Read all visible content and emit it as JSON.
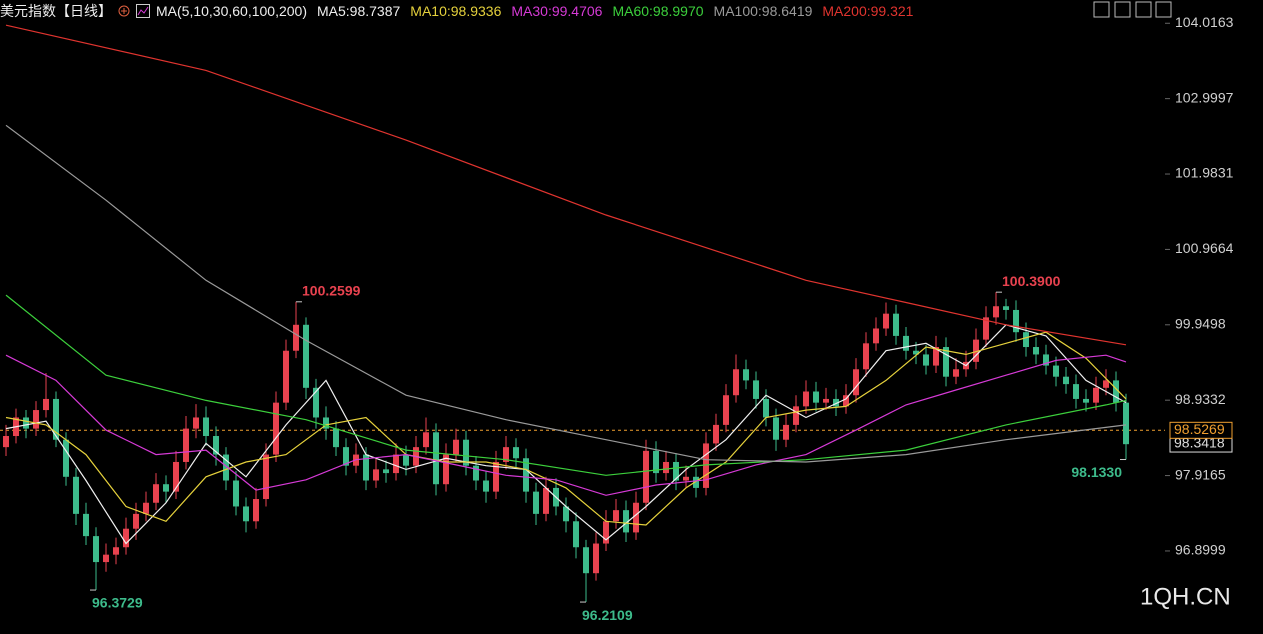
{
  "chart_data": {
    "type": "candlestick",
    "title": "美元指数【日线】",
    "indicator": "MA(5,10,30,60,100,200)",
    "watermark": "1QH.CN",
    "ylim": [
      95.78,
      104.33
    ],
    "yticks": [
      96.8999,
      97.9165,
      98.9332,
      99.9498,
      100.9664,
      101.9831,
      102.9997,
      104.0163
    ],
    "up_color": "#e8424f",
    "down_color": "#3dbb8b",
    "ohlc": [
      [
        98.3,
        98.6,
        98.18,
        98.45
      ],
      [
        98.45,
        98.82,
        98.35,
        98.7
      ],
      [
        98.7,
        98.8,
        98.42,
        98.55
      ],
      [
        98.55,
        98.92,
        98.45,
        98.8
      ],
      [
        98.8,
        99.3,
        98.7,
        98.95
      ],
      [
        98.95,
        99.05,
        98.3,
        98.4
      ],
      [
        98.4,
        98.5,
        97.78,
        97.9
      ],
      [
        97.9,
        98.02,
        97.25,
        97.4
      ],
      [
        97.4,
        97.55,
        96.98,
        97.1
      ],
      [
        97.1,
        97.22,
        96.3729,
        96.75
      ],
      [
        96.75,
        97.0,
        96.62,
        96.85
      ],
      [
        96.85,
        97.08,
        96.72,
        96.95
      ],
      [
        96.95,
        97.35,
        96.85,
        97.2
      ],
      [
        97.2,
        97.55,
        97.05,
        97.4
      ],
      [
        97.4,
        97.7,
        97.3,
        97.55
      ],
      [
        97.55,
        97.95,
        97.45,
        97.8
      ],
      [
        97.8,
        97.92,
        97.55,
        97.7
      ],
      [
        97.7,
        98.25,
        97.6,
        98.1
      ],
      [
        98.1,
        98.72,
        98.0,
        98.55
      ],
      [
        98.55,
        98.88,
        98.42,
        98.7
      ],
      [
        98.7,
        98.85,
        98.32,
        98.45
      ],
      [
        98.45,
        98.58,
        98.05,
        98.2
      ],
      [
        98.2,
        98.3,
        97.72,
        97.85
      ],
      [
        97.85,
        97.98,
        97.38,
        97.5
      ],
      [
        97.5,
        97.62,
        97.15,
        97.3
      ],
      [
        97.3,
        97.75,
        97.2,
        97.6
      ],
      [
        97.6,
        98.35,
        97.5,
        98.2
      ],
      [
        98.2,
        99.05,
        98.1,
        98.9
      ],
      [
        98.9,
        99.75,
        98.8,
        99.6
      ],
      [
        99.6,
        100.2599,
        99.5,
        99.95
      ],
      [
        99.95,
        100.05,
        98.95,
        99.1
      ],
      [
        99.1,
        99.22,
        98.55,
        98.7
      ],
      [
        98.7,
        98.85,
        98.4,
        98.55
      ],
      [
        98.55,
        98.65,
        98.18,
        98.3
      ],
      [
        98.3,
        98.42,
        97.92,
        98.05
      ],
      [
        98.05,
        98.35,
        97.95,
        98.2
      ],
      [
        98.2,
        98.3,
        97.72,
        97.85
      ],
      [
        97.85,
        98.15,
        97.75,
        98.0
      ],
      [
        98.0,
        98.12,
        97.82,
        97.95
      ],
      [
        97.95,
        98.35,
        97.85,
        98.2
      ],
      [
        98.2,
        98.32,
        97.92,
        98.05
      ],
      [
        98.05,
        98.45,
        97.95,
        98.3
      ],
      [
        98.3,
        98.7,
        98.2,
        98.5
      ],
      [
        98.5,
        98.62,
        97.65,
        97.8
      ],
      [
        97.8,
        98.35,
        97.7,
        98.2
      ],
      [
        98.2,
        98.55,
        98.1,
        98.4
      ],
      [
        98.4,
        98.52,
        97.92,
        98.05
      ],
      [
        98.05,
        98.18,
        97.72,
        97.85
      ],
      [
        97.85,
        97.98,
        97.55,
        97.7
      ],
      [
        97.7,
        98.25,
        97.6,
        98.1
      ],
      [
        98.1,
        98.45,
        98.0,
        98.3
      ],
      [
        98.3,
        98.42,
        98.02,
        98.15
      ],
      [
        98.15,
        98.28,
        97.55,
        97.7
      ],
      [
        97.7,
        97.82,
        97.25,
        97.4
      ],
      [
        97.4,
        97.9,
        97.3,
        97.75
      ],
      [
        97.75,
        97.88,
        97.38,
        97.5
      ],
      [
        97.5,
        97.62,
        97.15,
        97.3
      ],
      [
        97.3,
        97.42,
        96.8,
        96.95
      ],
      [
        96.95,
        97.05,
        96.2109,
        96.6
      ],
      [
        96.6,
        97.15,
        96.5,
        97.0
      ],
      [
        97.0,
        97.45,
        96.9,
        97.3
      ],
      [
        97.3,
        97.6,
        97.2,
        97.45
      ],
      [
        97.45,
        97.58,
        97.02,
        97.15
      ],
      [
        97.15,
        97.7,
        97.05,
        97.55
      ],
      [
        97.55,
        98.4,
        97.45,
        98.25
      ],
      [
        98.25,
        98.38,
        97.82,
        97.95
      ],
      [
        97.95,
        98.25,
        97.85,
        98.1
      ],
      [
        98.1,
        98.22,
        97.72,
        97.85
      ],
      [
        97.85,
        98.05,
        97.75,
        97.9
      ],
      [
        97.9,
        98.02,
        97.62,
        97.75
      ],
      [
        97.75,
        98.5,
        97.65,
        98.35
      ],
      [
        98.35,
        98.75,
        98.25,
        98.6
      ],
      [
        98.6,
        99.15,
        98.5,
        99.0
      ],
      [
        99.0,
        99.55,
        98.9,
        99.35
      ],
      [
        99.35,
        99.48,
        99.08,
        99.2
      ],
      [
        99.2,
        99.32,
        98.82,
        98.95
      ],
      [
        98.95,
        99.08,
        98.58,
        98.7
      ],
      [
        98.7,
        98.82,
        98.25,
        98.4
      ],
      [
        98.4,
        98.75,
        98.3,
        98.6
      ],
      [
        98.6,
        99.0,
        98.5,
        98.85
      ],
      [
        98.85,
        99.2,
        98.75,
        99.05
      ],
      [
        99.05,
        99.18,
        98.78,
        98.9
      ],
      [
        98.9,
        99.1,
        98.8,
        98.95
      ],
      [
        98.95,
        99.08,
        98.72,
        98.85
      ],
      [
        98.85,
        99.15,
        98.75,
        99.0
      ],
      [
        99.0,
        99.5,
        98.9,
        99.35
      ],
      [
        99.35,
        99.85,
        99.25,
        99.7
      ],
      [
        99.7,
        100.05,
        99.6,
        99.9
      ],
      [
        99.9,
        100.25,
        99.8,
        100.1
      ],
      [
        100.1,
        100.22,
        99.68,
        99.8
      ],
      [
        99.8,
        99.92,
        99.48,
        99.6
      ],
      [
        99.6,
        99.72,
        99.42,
        99.55
      ],
      [
        99.55,
        99.68,
        99.28,
        99.4
      ],
      [
        99.4,
        99.8,
        99.3,
        99.65
      ],
      [
        99.65,
        99.78,
        99.12,
        99.25
      ],
      [
        99.25,
        99.5,
        99.15,
        99.35
      ],
      [
        99.35,
        99.6,
        99.25,
        99.45
      ],
      [
        99.45,
        99.9,
        99.35,
        99.75
      ],
      [
        99.75,
        100.2,
        99.65,
        100.05
      ],
      [
        100.05,
        100.39,
        99.95,
        100.2
      ],
      [
        100.2,
        100.3,
        100.02,
        100.15
      ],
      [
        100.15,
        100.28,
        99.72,
        99.85
      ],
      [
        99.85,
        99.98,
        99.52,
        99.65
      ],
      [
        99.65,
        99.78,
        99.42,
        99.55
      ],
      [
        99.55,
        99.68,
        99.28,
        99.4
      ],
      [
        99.4,
        99.52,
        99.12,
        99.25
      ],
      [
        99.25,
        99.38,
        99.02,
        99.15
      ],
      [
        99.15,
        99.28,
        98.82,
        98.95
      ],
      [
        98.95,
        99.08,
        98.78,
        98.9
      ],
      [
        98.9,
        99.25,
        98.8,
        99.1
      ],
      [
        99.1,
        99.35,
        99.0,
        99.2
      ],
      [
        99.2,
        99.32,
        98.78,
        98.9
      ],
      [
        98.9,
        99.02,
        98.133,
        98.34
      ]
    ],
    "series": [
      {
        "name": "MA5:98.7387",
        "color": "#f0f0f0",
        "x": [
          0,
          4,
          8,
          12,
          16,
          20,
          24,
          28,
          32,
          36,
          40,
          44,
          48,
          52,
          56,
          60,
          64,
          68,
          72,
          76,
          80,
          84,
          88,
          92,
          96,
          100,
          104,
          108,
          112
        ],
        "values": [
          98.55,
          98.65,
          97.85,
          97.0,
          97.55,
          98.35,
          97.9,
          98.6,
          99.2,
          98.2,
          98.0,
          98.15,
          98.05,
          98.0,
          97.5,
          97.05,
          97.5,
          98.0,
          98.4,
          99.0,
          98.7,
          98.95,
          99.6,
          99.7,
          99.4,
          99.95,
          99.8,
          99.2,
          98.9
        ]
      },
      {
        "name": "MA10:98.9336",
        "color": "#e5d13c",
        "x": [
          0,
          4,
          8,
          12,
          16,
          20,
          24,
          28,
          32,
          36,
          40,
          44,
          48,
          52,
          56,
          60,
          64,
          68,
          72,
          76,
          80,
          84,
          88,
          92,
          96,
          100,
          104,
          108,
          112
        ],
        "values": [
          98.7,
          98.6,
          98.2,
          97.5,
          97.3,
          97.9,
          98.1,
          98.2,
          98.6,
          98.7,
          98.2,
          98.1,
          98.1,
          98.0,
          97.75,
          97.3,
          97.25,
          97.75,
          98.1,
          98.7,
          98.8,
          98.85,
          99.2,
          99.65,
          99.55,
          99.7,
          99.85,
          99.5,
          98.95
        ]
      },
      {
        "name": "MA30:99.4706",
        "color": "#d63ad6",
        "x": [
          0,
          5,
          10,
          15,
          20,
          25,
          30,
          35,
          40,
          45,
          50,
          55,
          60,
          65,
          70,
          75,
          80,
          85,
          90,
          95,
          100,
          105,
          110,
          112
        ],
        "values": [
          99.54,
          99.2,
          98.53,
          98.2,
          98.26,
          97.72,
          97.86,
          98.13,
          98.2,
          98.06,
          97.92,
          97.86,
          97.65,
          97.79,
          97.86,
          98.06,
          98.2,
          98.53,
          98.87,
          99.07,
          99.27,
          99.47,
          99.54,
          99.45
        ]
      },
      {
        "name": "MA60:98.9970",
        "color": "#3ccf3c",
        "x": [
          0,
          10,
          20,
          30,
          40,
          50,
          60,
          70,
          80,
          90,
          100,
          110,
          112
        ],
        "values": [
          100.35,
          99.27,
          98.93,
          98.67,
          98.26,
          98.13,
          97.92,
          98.06,
          98.13,
          98.26,
          98.6,
          98.87,
          98.93
        ]
      },
      {
        "name": "MA100:98.6419",
        "color": "#9a9a9a",
        "x": [
          0,
          10,
          20,
          30,
          40,
          50,
          60,
          70,
          80,
          90,
          100,
          112
        ],
        "values": [
          102.64,
          101.63,
          100.55,
          99.74,
          99.0,
          98.67,
          98.4,
          98.13,
          98.1,
          98.2,
          98.4,
          98.6
        ]
      },
      {
        "name": "MA200:99.321",
        "color": "#e0342f",
        "x": [
          0,
          20,
          40,
          60,
          80,
          90,
          100,
          112
        ],
        "values": [
          103.99,
          103.38,
          102.44,
          101.43,
          100.55,
          100.25,
          99.95,
          99.68
        ]
      }
    ],
    "extreme_labels": [
      {
        "value": 100.2599,
        "label": "100.2599",
        "color": "#e8424f"
      },
      {
        "value": 100.39,
        "label": "100.3900",
        "color": "#e8424f"
      },
      {
        "value": 96.3729,
        "label": "96.3729",
        "color": "#3dbb8b"
      },
      {
        "value": 96.2109,
        "label": "96.2109",
        "color": "#3dbb8b"
      },
      {
        "value": 98.133,
        "label": "98.1330",
        "color": "#3dbb8b"
      }
    ],
    "price_lines": [
      {
        "value": 98.5269,
        "color": "#f0a030"
      },
      {
        "value": 98.3418,
        "color": "#dddddd"
      }
    ]
  }
}
